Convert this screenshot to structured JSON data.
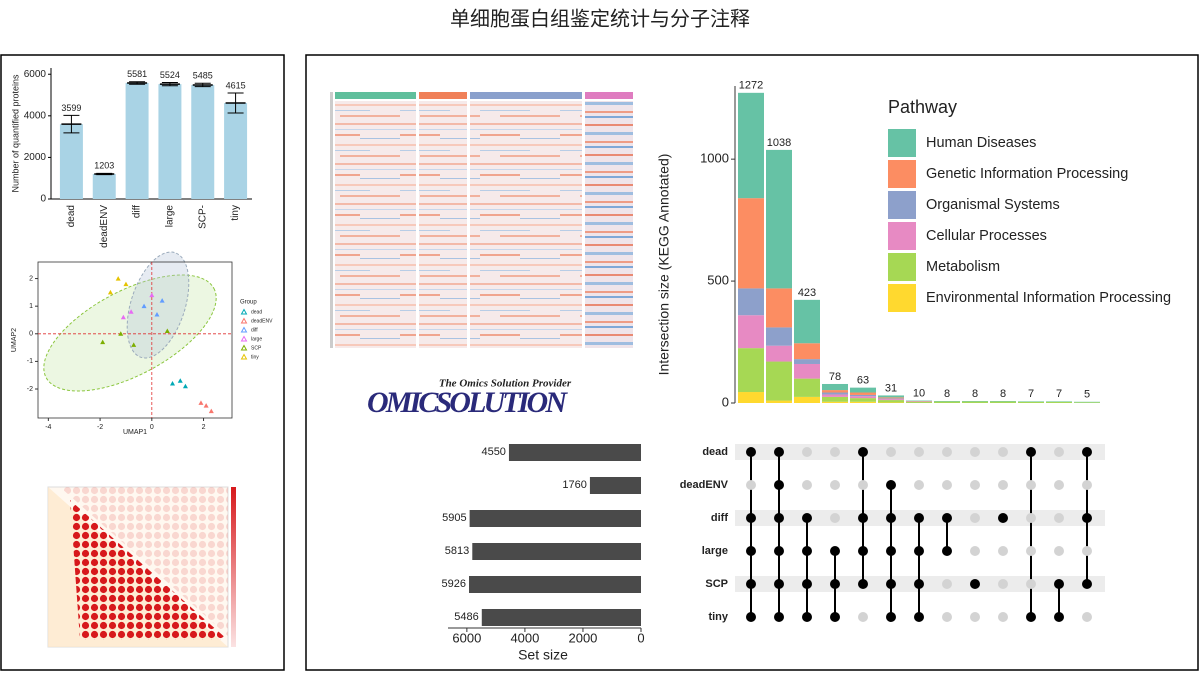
{
  "title": "单细胞蛋白组鉴定统计与分子注释",
  "logo": {
    "tagline": "The Omics Solution Provider",
    "name": "OMICSOLUTION"
  },
  "chart_data": [
    {
      "type": "bar",
      "ylabel": "Number of quantified proteins",
      "categories": [
        "dead",
        "deadENV",
        "diff",
        "large",
        "SCP-",
        "tiny"
      ],
      "values": [
        3599,
        1203,
        5581,
        5524,
        5485,
        4615
      ],
      "errors": [
        420,
        30,
        60,
        80,
        80,
        480
      ],
      "color": "#a9d3e5",
      "ylim": [
        0,
        6300
      ],
      "yticks": [
        0,
        2000,
        4000,
        6000
      ]
    },
    {
      "type": "scatter",
      "xlabel": "UMAP1",
      "ylabel": "UMAP2",
      "legend_title": "Group",
      "xlim": [
        -4.4,
        3.1
      ],
      "xticks": [
        -4,
        -2,
        0,
        2
      ],
      "ylim": [
        -3.05,
        2.6
      ],
      "yticks": [
        -2,
        -1,
        0,
        1,
        2
      ],
      "series": [
        {
          "name": "dead",
          "color": "#00a9b5",
          "x": [
            0.8,
            1.1,
            1.3
          ],
          "y": [
            -1.8,
            -1.7,
            -1.9
          ]
        },
        {
          "name": "deadENV",
          "color": "#f8766d",
          "x": [
            1.9,
            2.1,
            2.3
          ],
          "y": [
            -2.5,
            -2.6,
            -2.8
          ]
        },
        {
          "name": "diff",
          "color": "#619cff",
          "x": [
            -0.3,
            0.4,
            0.2
          ],
          "y": [
            1.0,
            1.2,
            0.7
          ]
        },
        {
          "name": "large",
          "color": "#e76bf3",
          "x": [
            -0.8,
            -1.1,
            0.0
          ],
          "y": [
            0.8,
            0.6,
            1.4
          ]
        },
        {
          "name": "SCP",
          "color": "#7cae00",
          "x": [
            -1.9,
            -0.7,
            -1.2,
            0.6
          ],
          "y": [
            -0.3,
            -0.4,
            0.0,
            0.1
          ]
        },
        {
          "name": "tiny",
          "color": "#e6c300",
          "x": [
            -1.3,
            -1.0,
            -1.6
          ],
          "y": [
            2.0,
            1.8,
            1.5
          ]
        }
      ]
    },
    {
      "type": "upset",
      "ylabel": "Intersection size (KEGG Annotated)",
      "legend_title": "Pathway",
      "ylim": [
        0,
        1300
      ],
      "yticks": [
        0,
        500,
        1000
      ],
      "totals": [
        1272,
        1038,
        423,
        78,
        63,
        31,
        10,
        8,
        8,
        8,
        7,
        7,
        5
      ],
      "series": [
        {
          "name": "Human Diseases",
          "color": "#66c2a5",
          "values": [
            432,
            568,
            178,
            25,
            20,
            8,
            2,
            2,
            2,
            2,
            2,
            2,
            2
          ]
        },
        {
          "name": "Genetic Information Processing",
          "color": "#fc8d62",
          "values": [
            370,
            160,
            65,
            10,
            10,
            4,
            2,
            0,
            0,
            0,
            0,
            0,
            0
          ]
        },
        {
          "name": "Organismal Systems",
          "color": "#8da0cb",
          "values": [
            110,
            75,
            20,
            8,
            5,
            3,
            1,
            0,
            0,
            0,
            0,
            0,
            0
          ]
        },
        {
          "name": "Cellular Processes",
          "color": "#e78ac3",
          "values": [
            135,
            65,
            60,
            10,
            8,
            4,
            1,
            0,
            0,
            0,
            0,
            0,
            0
          ]
        },
        {
          "name": "Metabolism",
          "color": "#a6d854",
          "values": [
            180,
            160,
            75,
            20,
            15,
            10,
            4,
            6,
            6,
            6,
            5,
            5,
            3
          ]
        },
        {
          "name": "Environmental Information Processing",
          "color": "#ffd92f",
          "values": [
            45,
            10,
            25,
            5,
            5,
            2,
            0,
            0,
            0,
            0,
            0,
            0,
            0
          ]
        }
      ],
      "sets": [
        "dead",
        "deadENV",
        "diff",
        "large",
        "SCP",
        "tiny"
      ],
      "set_sizes": [
        4550,
        1760,
        5905,
        5813,
        5926,
        5486
      ],
      "set_xlim": [
        6650,
        0
      ],
      "set_xticks": [
        6000,
        4000,
        2000,
        0
      ],
      "set_xlabel": "Set size",
      "membership": [
        [
          1,
          0,
          1,
          1,
          1,
          1
        ],
        [
          1,
          1,
          1,
          1,
          1,
          1
        ],
        [
          0,
          0,
          1,
          1,
          1,
          1
        ],
        [
          0,
          0,
          0,
          1,
          1,
          1
        ],
        [
          1,
          0,
          1,
          1,
          1,
          0
        ],
        [
          0,
          1,
          1,
          1,
          1,
          1
        ],
        [
          0,
          0,
          1,
          1,
          1,
          1
        ],
        [
          0,
          0,
          1,
          1,
          0,
          0
        ],
        [
          0,
          0,
          0,
          0,
          1,
          0
        ],
        [
          0,
          0,
          1,
          0,
          0,
          0
        ],
        [
          1,
          0,
          0,
          0,
          0,
          1
        ],
        [
          0,
          0,
          0,
          0,
          1,
          1
        ],
        [
          1,
          0,
          1,
          0,
          1,
          0
        ]
      ]
    }
  ]
}
